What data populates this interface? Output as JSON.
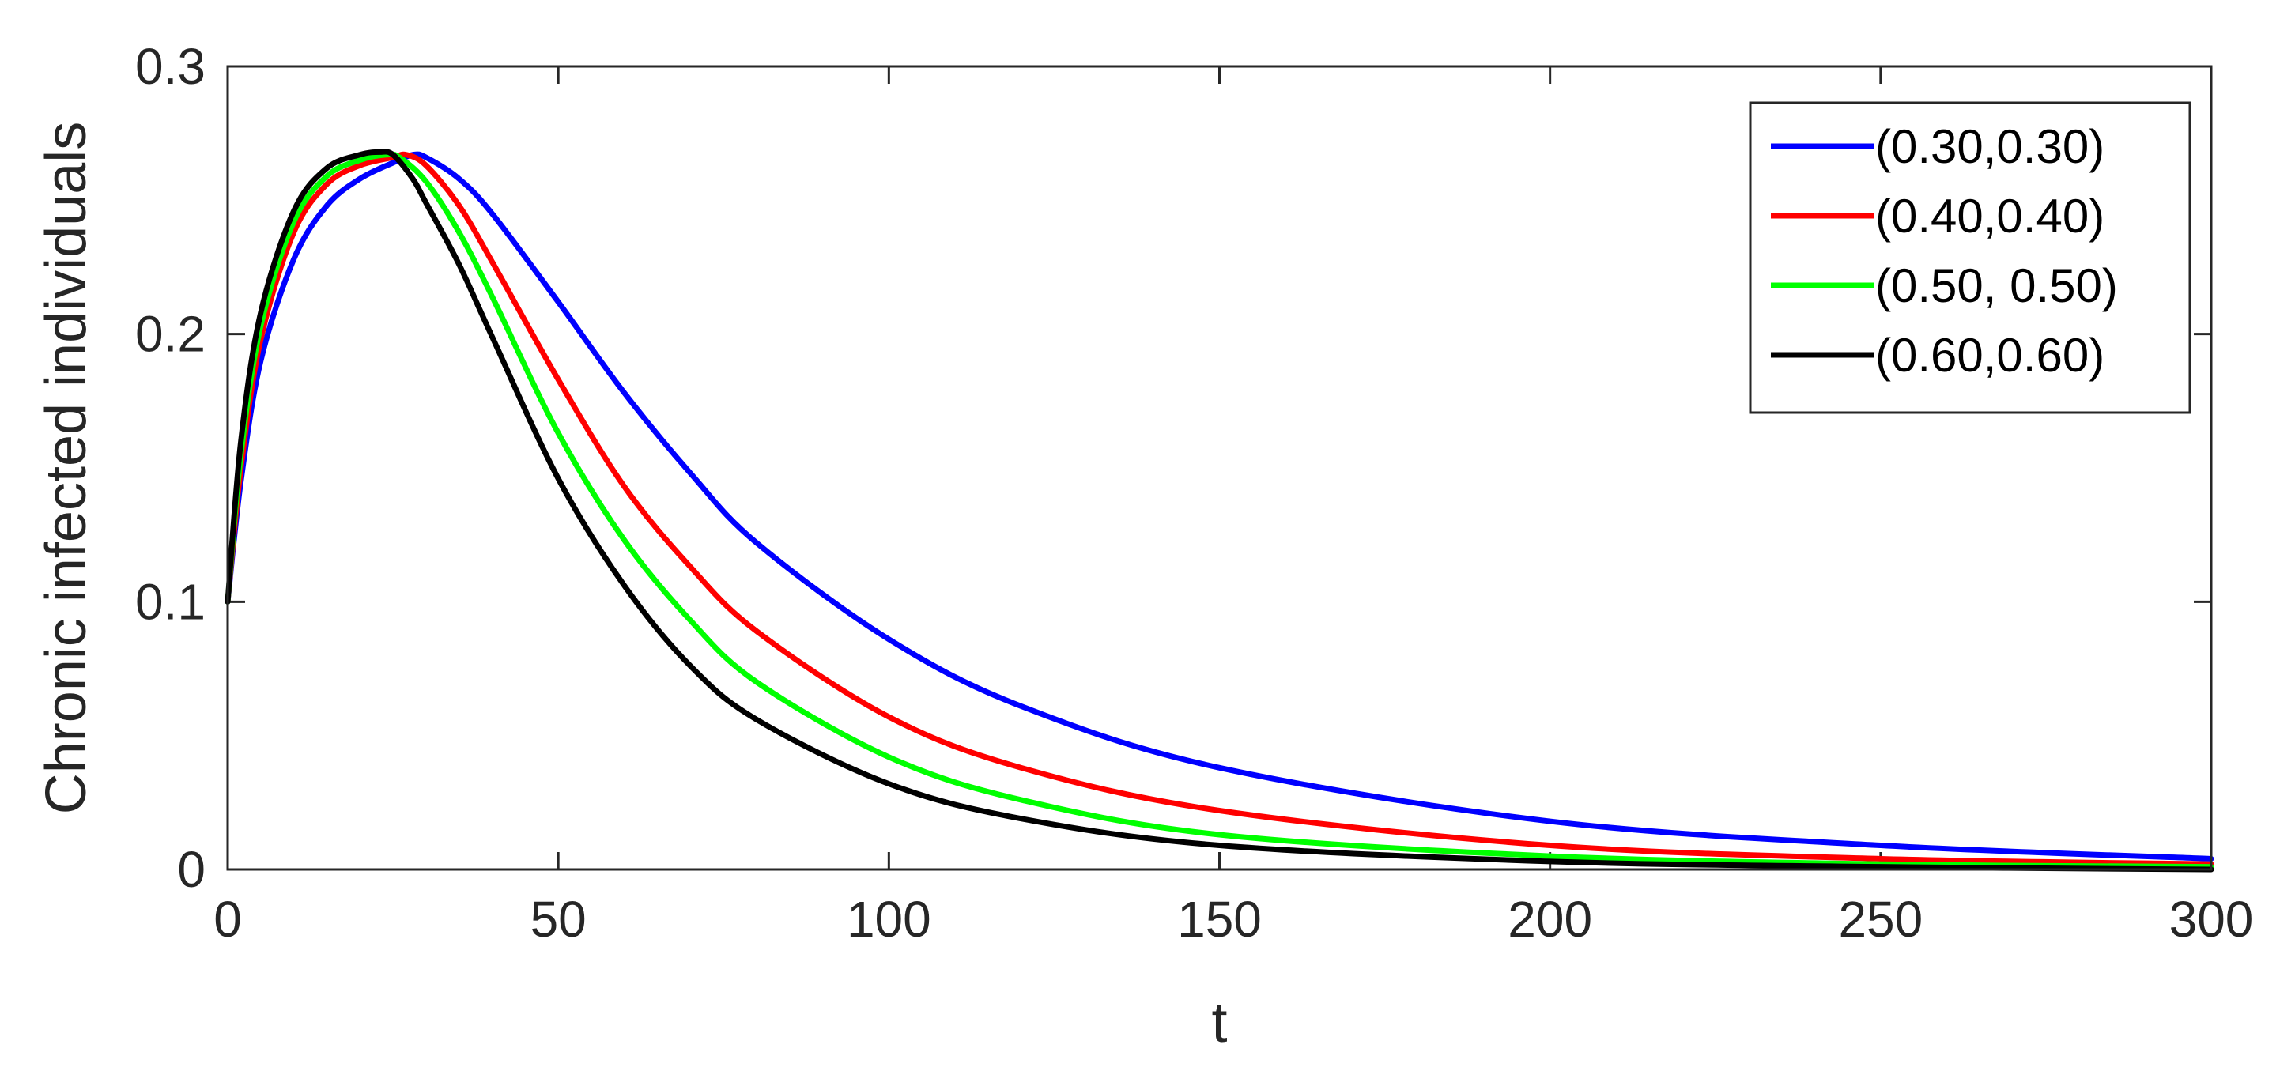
{
  "chart_data": {
    "type": "line",
    "title": "",
    "xlabel": "t",
    "ylabel": "Chronic infected individuals",
    "xlim": [
      0,
      300
    ],
    "ylim": [
      0,
      0.3
    ],
    "xticks": [
      0,
      50,
      100,
      150,
      200,
      250,
      300
    ],
    "yticks": [
      0,
      0.1,
      0.2,
      0.3
    ],
    "xtick_labels": [
      "0",
      "50",
      "100",
      "150",
      "200",
      "250",
      "300"
    ],
    "ytick_labels": [
      "0",
      "0.1",
      "0.2",
      "0.3"
    ],
    "grid": false,
    "legend_position": "top-right",
    "series": [
      {
        "name": "(0.30,0.30)",
        "color": "#0000ff",
        "x": [
          0,
          2,
          5,
          10,
          15,
          20,
          25,
          28,
          30,
          35,
          40,
          50,
          60,
          70,
          80,
          100,
          120,
          150,
          200,
          250,
          300
        ],
        "y": [
          0.1,
          0.145,
          0.19,
          0.228,
          0.248,
          0.258,
          0.264,
          0.267,
          0.266,
          0.258,
          0.245,
          0.212,
          0.178,
          0.148,
          0.122,
          0.086,
          0.061,
          0.038,
          0.018,
          0.009,
          0.004
        ]
      },
      {
        "name": "(0.40,0.40)",
        "color": "#ff0000",
        "x": [
          0,
          2,
          5,
          10,
          15,
          20,
          25,
          27,
          30,
          35,
          40,
          50,
          60,
          70,
          80,
          100,
          120,
          150,
          200,
          250,
          300
        ],
        "y": [
          0.1,
          0.15,
          0.198,
          0.238,
          0.256,
          0.263,
          0.266,
          0.267,
          0.263,
          0.248,
          0.227,
          0.183,
          0.143,
          0.113,
          0.089,
          0.057,
          0.038,
          0.022,
          0.009,
          0.004,
          0.002
        ]
      },
      {
        "name": "(0.50, 0.50)",
        "color": "#00ff00",
        "x": [
          0,
          2,
          5,
          10,
          15,
          20,
          24,
          26,
          30,
          35,
          40,
          50,
          60,
          70,
          80,
          100,
          120,
          150,
          200,
          250,
          300
        ],
        "y": [
          0.1,
          0.155,
          0.203,
          0.242,
          0.259,
          0.265,
          0.267,
          0.266,
          0.257,
          0.238,
          0.214,
          0.163,
          0.123,
          0.093,
          0.07,
          0.042,
          0.026,
          0.013,
          0.005,
          0.002,
          0.001
        ]
      },
      {
        "name": "(0.60,0.60)",
        "color": "#000000",
        "x": [
          0,
          2,
          5,
          10,
          15,
          20,
          23,
          25,
          28,
          30,
          35,
          40,
          50,
          60,
          70,
          80,
          100,
          120,
          150,
          200,
          250,
          300
        ],
        "y": [
          0.1,
          0.16,
          0.208,
          0.246,
          0.262,
          0.267,
          0.268,
          0.267,
          0.258,
          0.249,
          0.226,
          0.199,
          0.146,
          0.106,
          0.076,
          0.056,
          0.032,
          0.019,
          0.009,
          0.003,
          0.001,
          0.0
        ]
      }
    ]
  }
}
